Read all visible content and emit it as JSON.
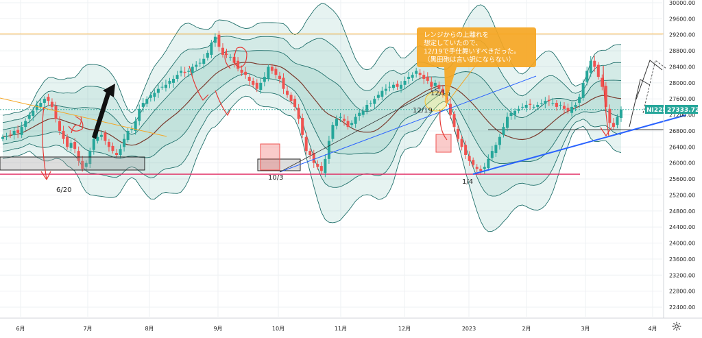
{
  "chart_data": {
    "type": "candlestick",
    "title": "",
    "symbol": "NI225",
    "last_price": "27333.72",
    "y_axis": {
      "range": [
        22000,
        30000
      ],
      "ticks": [
        "30000.00",
        "29600.00",
        "29200.00",
        "28800.00",
        "28400.00",
        "28000.00",
        "27600.00",
        "27200.00",
        "26800.00",
        "26400.00",
        "26000.00",
        "25600.00",
        "25200.00",
        "24800.00",
        "24400.00",
        "24000.00",
        "23600.00",
        "23200.00",
        "22800.00",
        "22400.00"
      ]
    },
    "x_axis": {
      "labels": [
        "6月",
        "7月",
        "8月",
        "9月",
        "10月",
        "11月",
        "12月",
        "2023",
        "2月",
        "3月",
        "4月"
      ]
    },
    "reference_levels": {
      "resistance": 29220,
      "support": 25720,
      "range_line": 26830
    },
    "date_annotations": [
      "6/20",
      "10/3",
      "12/16",
      "12/19",
      "1/4"
    ],
    "callout": {
      "lines": [
        "レンジからの上離れを",
        "想定していたので、",
        "12/19で手仕舞いすべきだった。",
        "（黒田砲は言い訳にならない）"
      ]
    },
    "bollinger_levels": "±1σ, ±2σ, ±3σ",
    "grid": true,
    "colors": {
      "up": "#26a69a",
      "down": "#ef5350",
      "band_fill": "#2e9a8a",
      "band_line": "#1f6f6a",
      "middle_line": "#7a3b2e",
      "resistance": "#f5a623",
      "support": "#e0245e",
      "trend_blue": "#2962ff",
      "price_tag": "#26a69a",
      "callout_bg": "#f5a623",
      "annotation_red": "#e53935"
    },
    "closes_approx": [
      26650,
      26680,
      26720,
      26800,
      26750,
      26900,
      27050,
      27200,
      27300,
      27450,
      27500,
      27600,
      27550,
      27400,
      27100,
      26800,
      26600,
      26400,
      26500,
      26350,
      26050,
      25850,
      26000,
      26300,
      26600,
      26650,
      26700,
      26550,
      26400,
      26300,
      26200,
      26350,
      26600,
      26800,
      26850,
      27050,
      27350,
      27500,
      27600,
      27700,
      27750,
      27850,
      27900,
      27950,
      28050,
      28100,
      28200,
      28300,
      28250,
      28300,
      28400,
      28450,
      28500,
      28600,
      28750,
      29000,
      29150,
      28900,
      28700,
      28700,
      28650,
      28500,
      28350,
      28250,
      28200,
      28050,
      27950,
      27850,
      28000,
      28150,
      28400,
      28300,
      28200,
      28100,
      27850,
      27700,
      27550,
      27400,
      27100,
      26700,
      26300,
      26200,
      26000,
      25900,
      25800,
      26100,
      26550,
      26950,
      27100,
      27150,
      27050,
      26900,
      27000,
      27150,
      27250,
      27300,
      27450,
      27500,
      27600,
      27700,
      27800,
      27850,
      27900,
      27950,
      27900,
      27950,
      28050,
      28150,
      28200,
      28300,
      28200,
      28100,
      28050,
      27900,
      28000,
      27850,
      27700,
      27500,
      27200,
      26900,
      26600,
      26400,
      26200,
      26050,
      25950,
      25850,
      25800,
      25900,
      26100,
      26300,
      26450,
      26650,
      26900,
      27150,
      27250,
      27300,
      27350,
      27400,
      27450,
      27450,
      27400,
      27450,
      27500,
      27550,
      27550,
      27500,
      27400,
      27450,
      27350,
      27300,
      27400,
      27450,
      27650,
      28000,
      28300,
      28550,
      28400,
      28150,
      27900,
      27400,
      27000,
      26900,
      27150,
      27333
    ]
  }
}
